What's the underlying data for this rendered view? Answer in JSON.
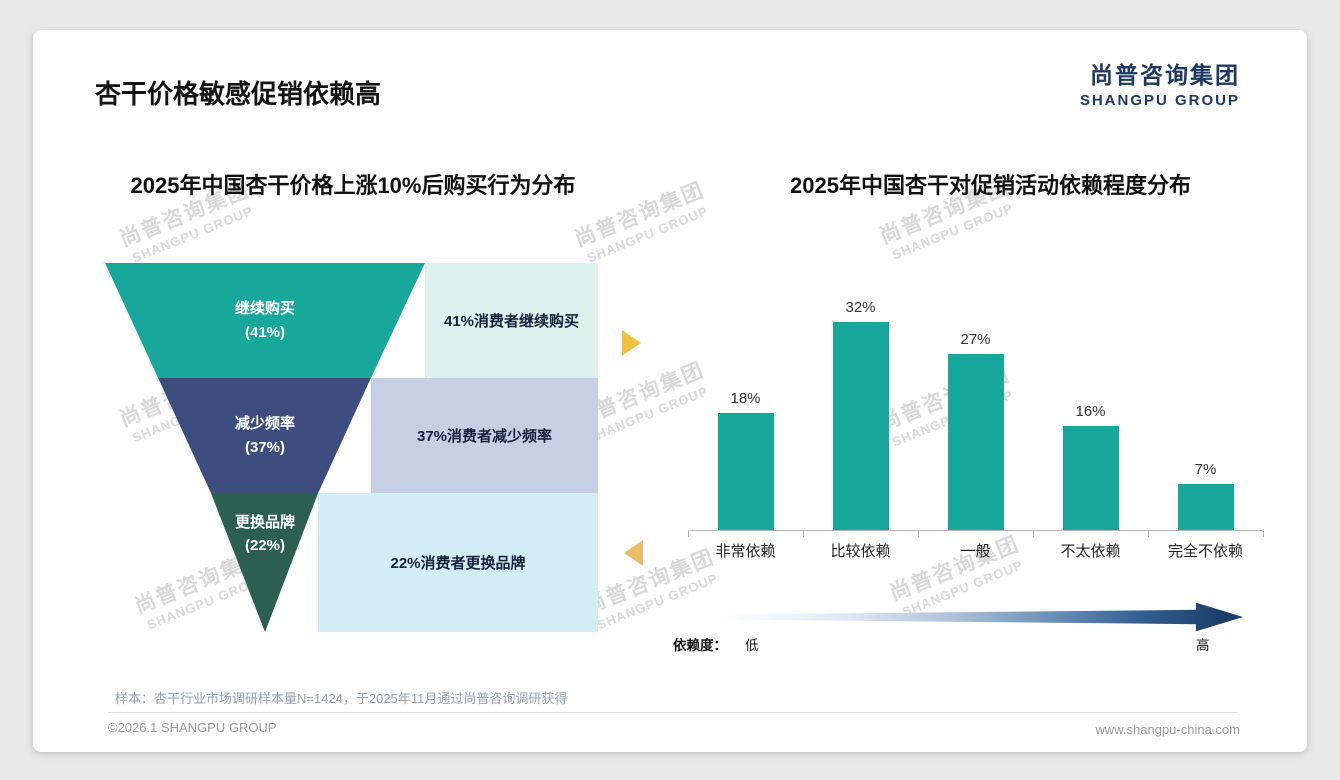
{
  "page": {
    "title": "杏干价格敏感促销依赖高",
    "logo": {
      "cn": "尚普咨询集团",
      "en": "SHANGPU GROUP"
    },
    "watermark": {
      "cn": "尚普咨询集团",
      "en": "SHANGPU GROUP"
    },
    "footnote": "样本：杏干行业市场调研样本量N=1424，于2025年11月通过尚普咨询调研获得",
    "footer_left": "©2026.1 SHANGPU GROUP",
    "footer_right": "www.shangpu-china.com"
  },
  "colors": {
    "teal": "#18A79B",
    "navy": "#3D4E7E",
    "dark_green": "#2B5F51",
    "mint_light": "#DDF2EE",
    "lavender_light": "#C7CFE5",
    "blue_light": "#D3EDF6",
    "arrow_gold": "#EFC33F",
    "arrow_gold_light": "#E9BD6A",
    "logo_navy": "#1F3864",
    "gradient_dark": "#17375E"
  },
  "chart_data": [
    {
      "type": "funnel",
      "title": "2025年中国杏干价格上涨10%后购买行为分布",
      "segments": [
        {
          "label": "继续购买",
          "pct": "(41%)",
          "value": 41,
          "note": "41%消费者继续购买"
        },
        {
          "label": "减少频率",
          "pct": "(37%)",
          "value": 37,
          "note": "37%消费者减少频率"
        },
        {
          "label": "更换品牌",
          "pct": "(22%)",
          "value": 22,
          "note": "22%消费者更换品牌"
        }
      ]
    },
    {
      "type": "bar",
      "title": "2025年中国杏干对促销活动依赖程度分布",
      "categories": [
        "非常依赖",
        "比较依赖",
        "一般",
        "不太依赖",
        "完全不依赖"
      ],
      "values": [
        18,
        32,
        27,
        16,
        7
      ],
      "value_labels": [
        "18%",
        "32%",
        "27%",
        "16%",
        "7%"
      ],
      "ylim": [
        0,
        35
      ],
      "grid": false,
      "axis": {
        "label": "依赖度：",
        "low": "低",
        "high": "高"
      }
    }
  ]
}
